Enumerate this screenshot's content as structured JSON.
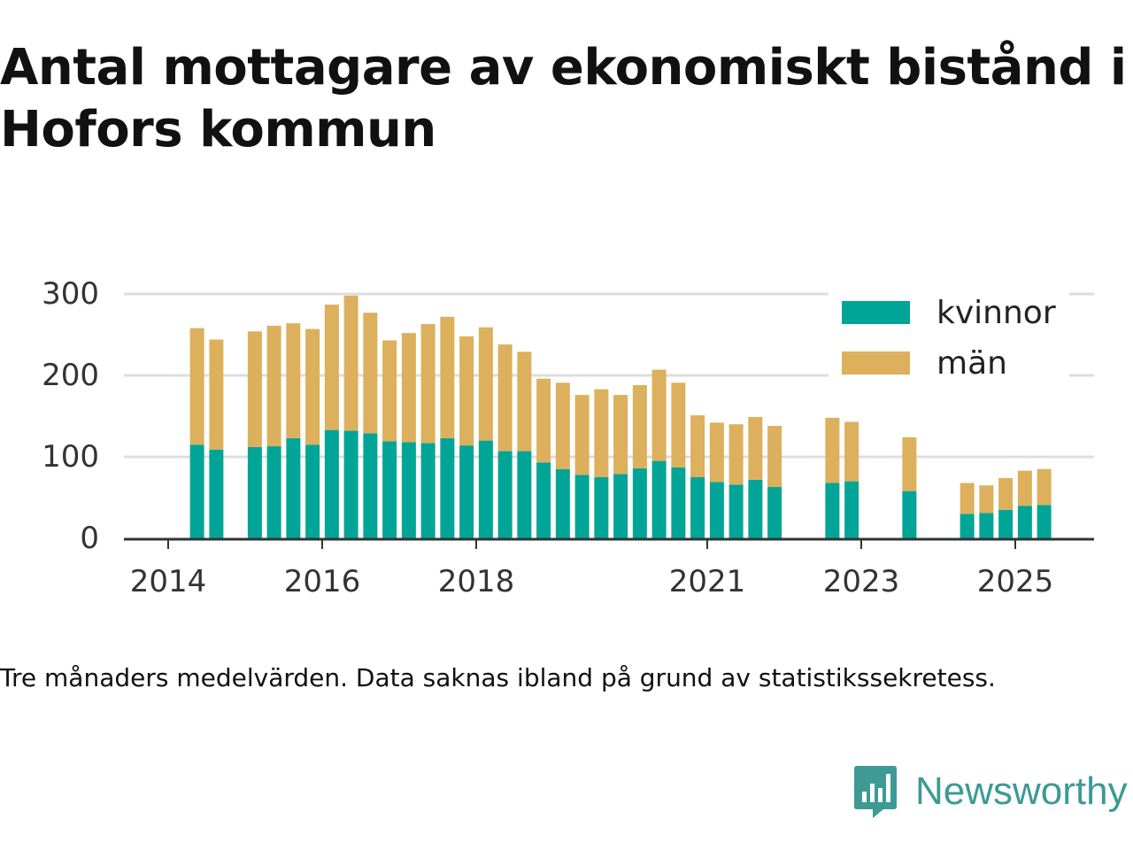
{
  "title": "Antal mottagare av ekonomiskt bistånd i Hofors kommun",
  "footnote": "Tre månaders medelvärden. Data saknas ibland på grund av statistikssekretess.",
  "brand": {
    "name": "Newsworthy",
    "icon": "newsworthy-logo-icon",
    "color": "#3d9a94"
  },
  "colors": {
    "kvinnor": "#00a597",
    "man": "#dcb05c",
    "grid": "#dddddd",
    "axis": "#333333",
    "text": "#333333"
  },
  "chart_data": {
    "type": "bar",
    "stacked": true,
    "title": "Antal mottagare av ekonomiskt bistånd i Hofors kommun",
    "xlabel": "",
    "ylabel": "",
    "ylim": [
      0,
      300
    ],
    "yticks": [
      0,
      100,
      200,
      300
    ],
    "grid": true,
    "legend_position": "top-right",
    "x_tick_labels": [
      "2014",
      "2016",
      "2018",
      "2021",
      "2023",
      "2025"
    ],
    "categories": [
      "2014-Q2",
      "2014-Q3",
      "2015-Q1",
      "2015-Q2",
      "2015-Q3",
      "2015-Q4",
      "2016-Q1",
      "2016-Q2",
      "2016-Q3",
      "2016-Q4",
      "2017-Q1",
      "2017-Q2",
      "2017-Q3",
      "2017-Q4",
      "2018-Q1",
      "2018-Q2",
      "2018-Q3",
      "2018-Q4",
      "2019-Q1",
      "2019-Q2",
      "2019-Q3",
      "2019-Q4",
      "2020-Q1",
      "2020-Q2",
      "2020-Q3",
      "2020-Q4",
      "2021-Q1",
      "2021-Q2",
      "2021-Q3",
      "2021-Q4",
      "2022-Q3",
      "2022-Q4",
      "2023-Q3",
      "2024-Q2",
      "2024-Q3",
      "2024-Q4",
      "2025-Q1",
      "2025-Q2"
    ],
    "series": [
      {
        "name": "kvinnor",
        "color": "#00a597",
        "values": [
          115,
          109,
          112,
          113,
          123,
          115,
          133,
          132,
          129,
          119,
          118,
          117,
          123,
          114,
          120,
          107,
          107,
          93,
          85,
          78,
          75,
          79,
          86,
          95,
          87,
          75,
          69,
          66,
          72,
          63,
          68,
          70,
          58,
          30,
          31,
          35,
          40,
          41
        ]
      },
      {
        "name": "män",
        "color": "#dcb05c",
        "values": [
          143,
          135,
          142,
          148,
          141,
          142,
          154,
          166,
          148,
          124,
          134,
          146,
          149,
          134,
          139,
          131,
          122,
          103,
          106,
          98,
          108,
          97,
          102,
          112,
          104,
          76,
          73,
          74,
          77,
          75,
          80,
          73,
          66,
          38,
          34,
          39,
          43,
          44
        ]
      }
    ]
  }
}
